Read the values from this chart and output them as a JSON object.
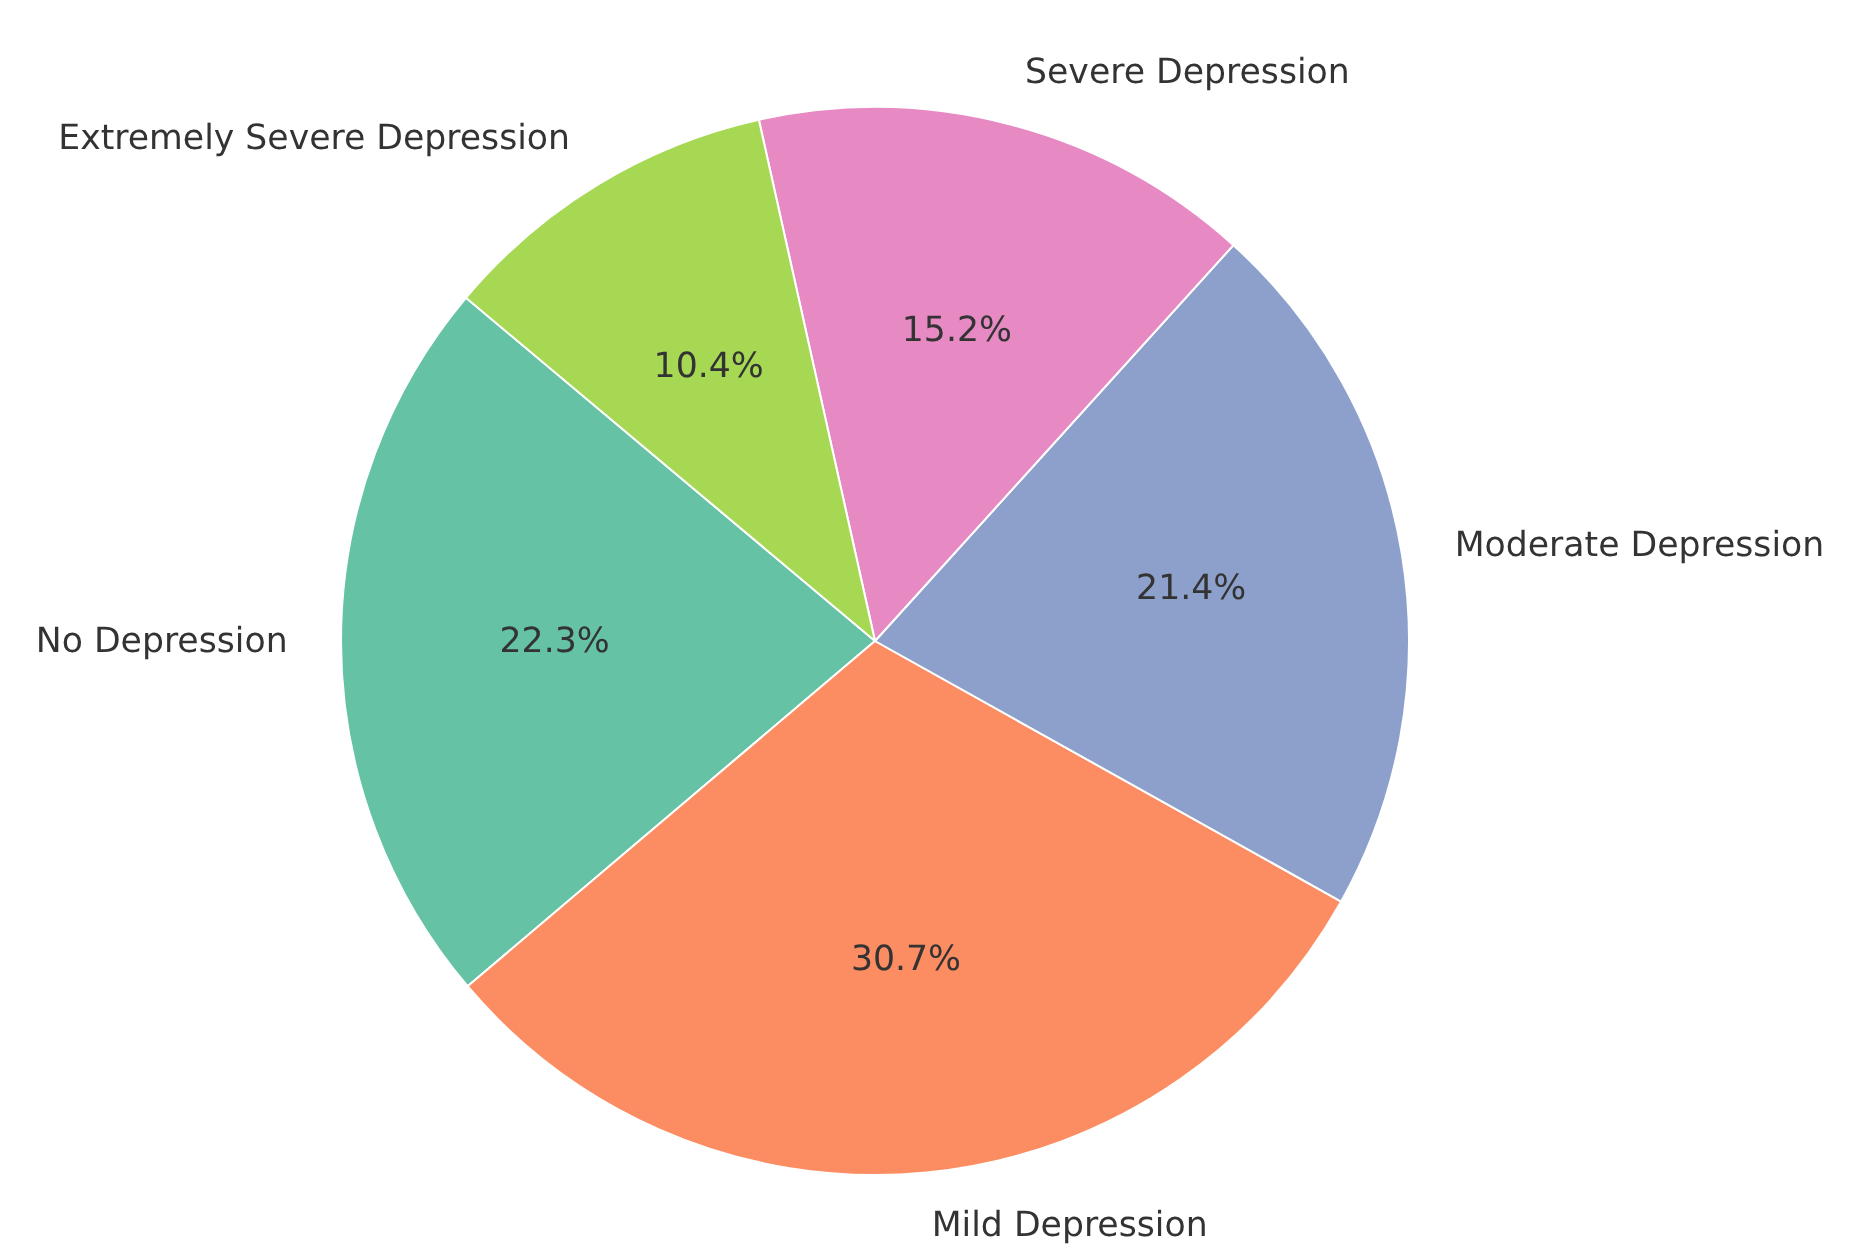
{
  "chart_data": {
    "type": "pie",
    "categories": [
      "No Depression",
      "Mild Depression",
      "Moderate Depression",
      "Severe Depression",
      "Extremely Severe Depression"
    ],
    "values": [
      22.3,
      30.7,
      21.4,
      15.2,
      10.4
    ],
    "colors": [
      "#66c2a5",
      "#fc8d62",
      "#8da0cb",
      "#e78ac3",
      "#a6d854"
    ],
    "value_labels": [
      "22.3%",
      "30.7%",
      "21.4%",
      "15.2%",
      "10.4%"
    ]
  }
}
